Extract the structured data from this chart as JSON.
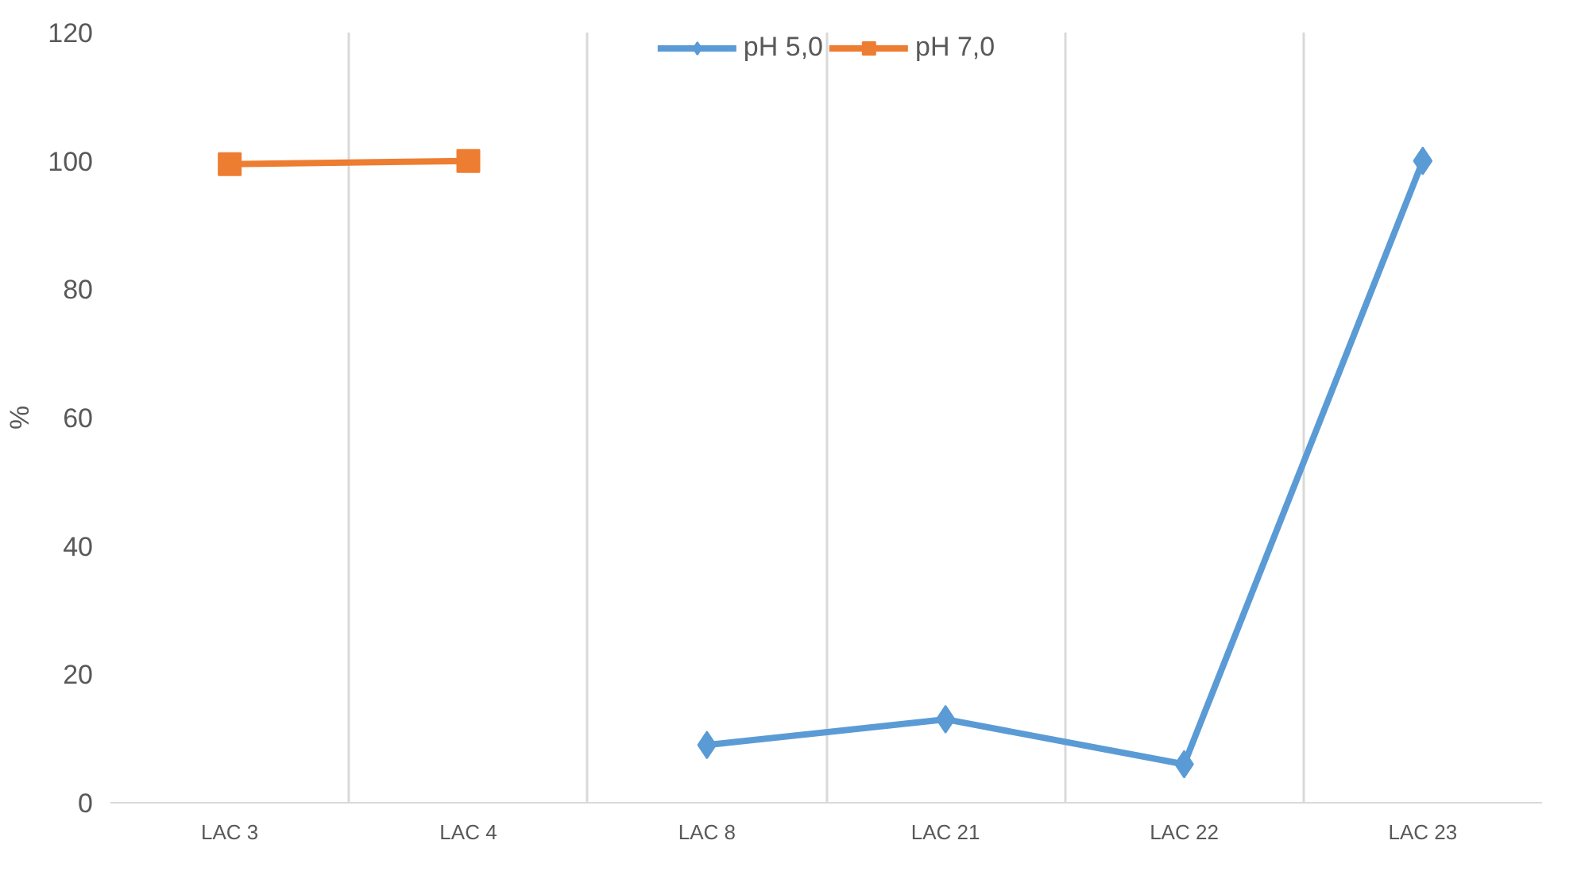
{
  "chart_data": {
    "type": "line",
    "ylabel": "%",
    "categories": [
      "LAC 3",
      "LAC 4",
      "LAC 8",
      "LAC 21",
      "LAC 22",
      "LAC 23"
    ],
    "series": [
      {
        "name": "pH 5,0",
        "color": "#5b9bd5",
        "marker": "diamond",
        "values": [
          null,
          null,
          9,
          13,
          6,
          100
        ]
      },
      {
        "name": "pH 7,0",
        "color": "#ed7d31",
        "marker": "square",
        "values": [
          99.5,
          100,
          null,
          null,
          null,
          null
        ]
      }
    ],
    "ylim": [
      0,
      120
    ],
    "yticks": [
      0,
      20,
      40,
      60,
      80,
      100,
      120
    ],
    "grid": "x",
    "legend": "top"
  }
}
